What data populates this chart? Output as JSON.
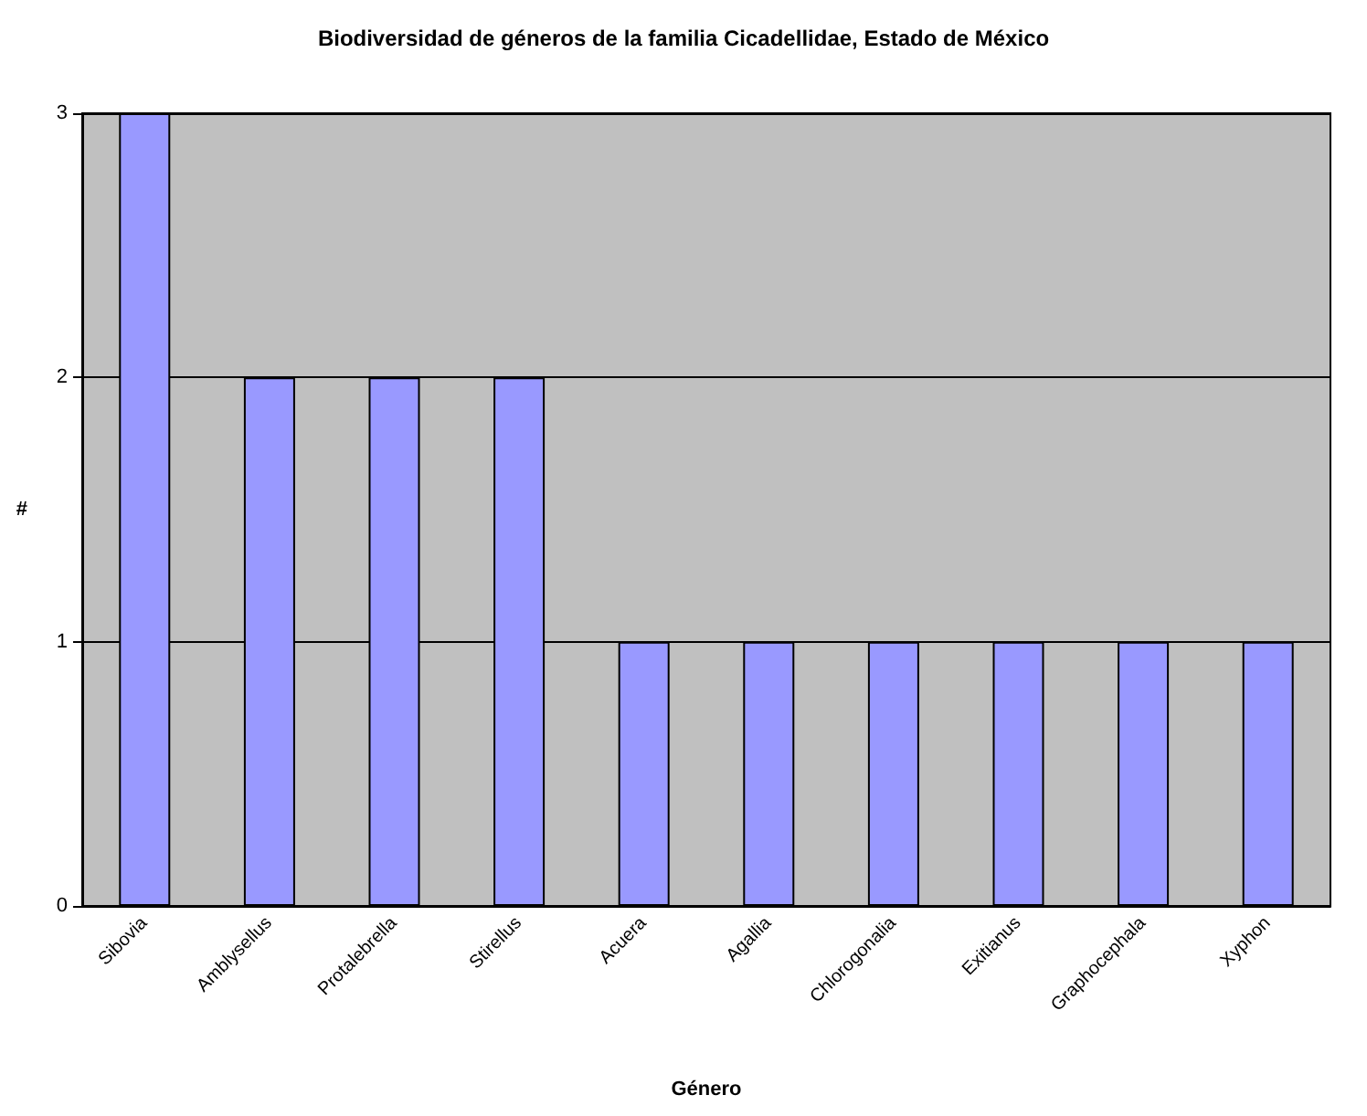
{
  "chart_data": {
    "type": "bar",
    "title": "Biodiversidad de géneros de la familia Cicadellidae, Estado de México",
    "xlabel": "Género",
    "ylabel": "#",
    "categories": [
      "Sibovia",
      "Amblysellus",
      "Protalebrella",
      "Stirellus",
      "Acuera",
      "Agallia",
      "Chlorogonalia",
      "Exitianus",
      "Graphocephala",
      "Xyphon"
    ],
    "values": [
      3,
      2,
      2,
      2,
      1,
      1,
      1,
      1,
      1,
      1
    ],
    "color": "#9999ff",
    "ylim": [
      0,
      3
    ],
    "yticks": [
      0,
      1,
      2,
      3
    ],
    "grid": "y"
  }
}
